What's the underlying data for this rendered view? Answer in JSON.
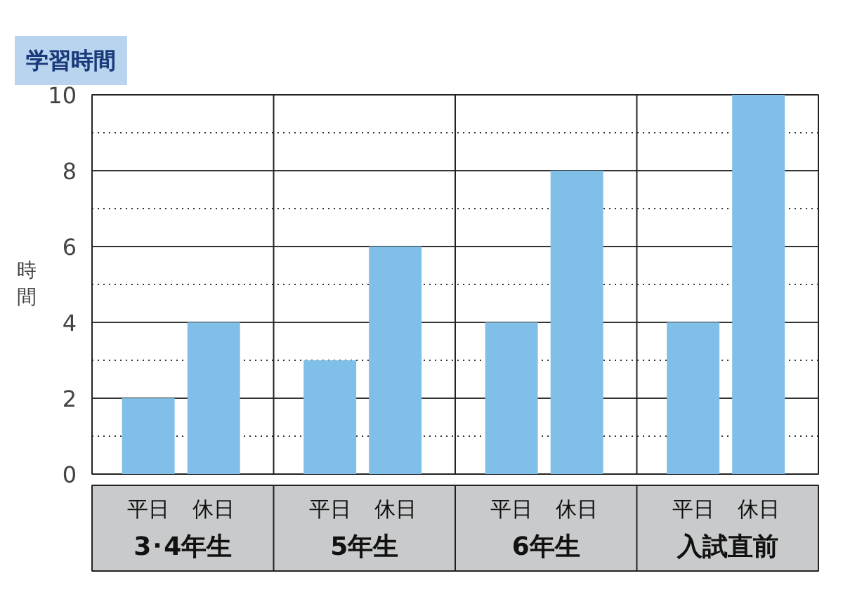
{
  "chart_data": {
    "type": "bar",
    "title": "学習時間",
    "ylabel": "時間",
    "categories": [
      "3･4年生",
      "5年生",
      "6年生",
      "入試直前"
    ],
    "series": [
      {
        "name": "平日",
        "color": "#80bfe8",
        "values": [
          2,
          3,
          4,
          4
        ]
      },
      {
        "name": "休日",
        "color": "#80bfe8",
        "values": [
          4,
          6,
          8,
          10
        ]
      }
    ],
    "ylim": [
      0,
      10
    ],
    "yticks": [
      0,
      {
        "value": 1,
        "label": null
      },
      2,
      {
        "value": 3,
        "label": null
      },
      4,
      {
        "value": 5,
        "label": null
      },
      6,
      {
        "value": 7,
        "label": null
      },
      8,
      {
        "value": 9,
        "label": null
      },
      10
    ],
    "grid": true
  }
}
